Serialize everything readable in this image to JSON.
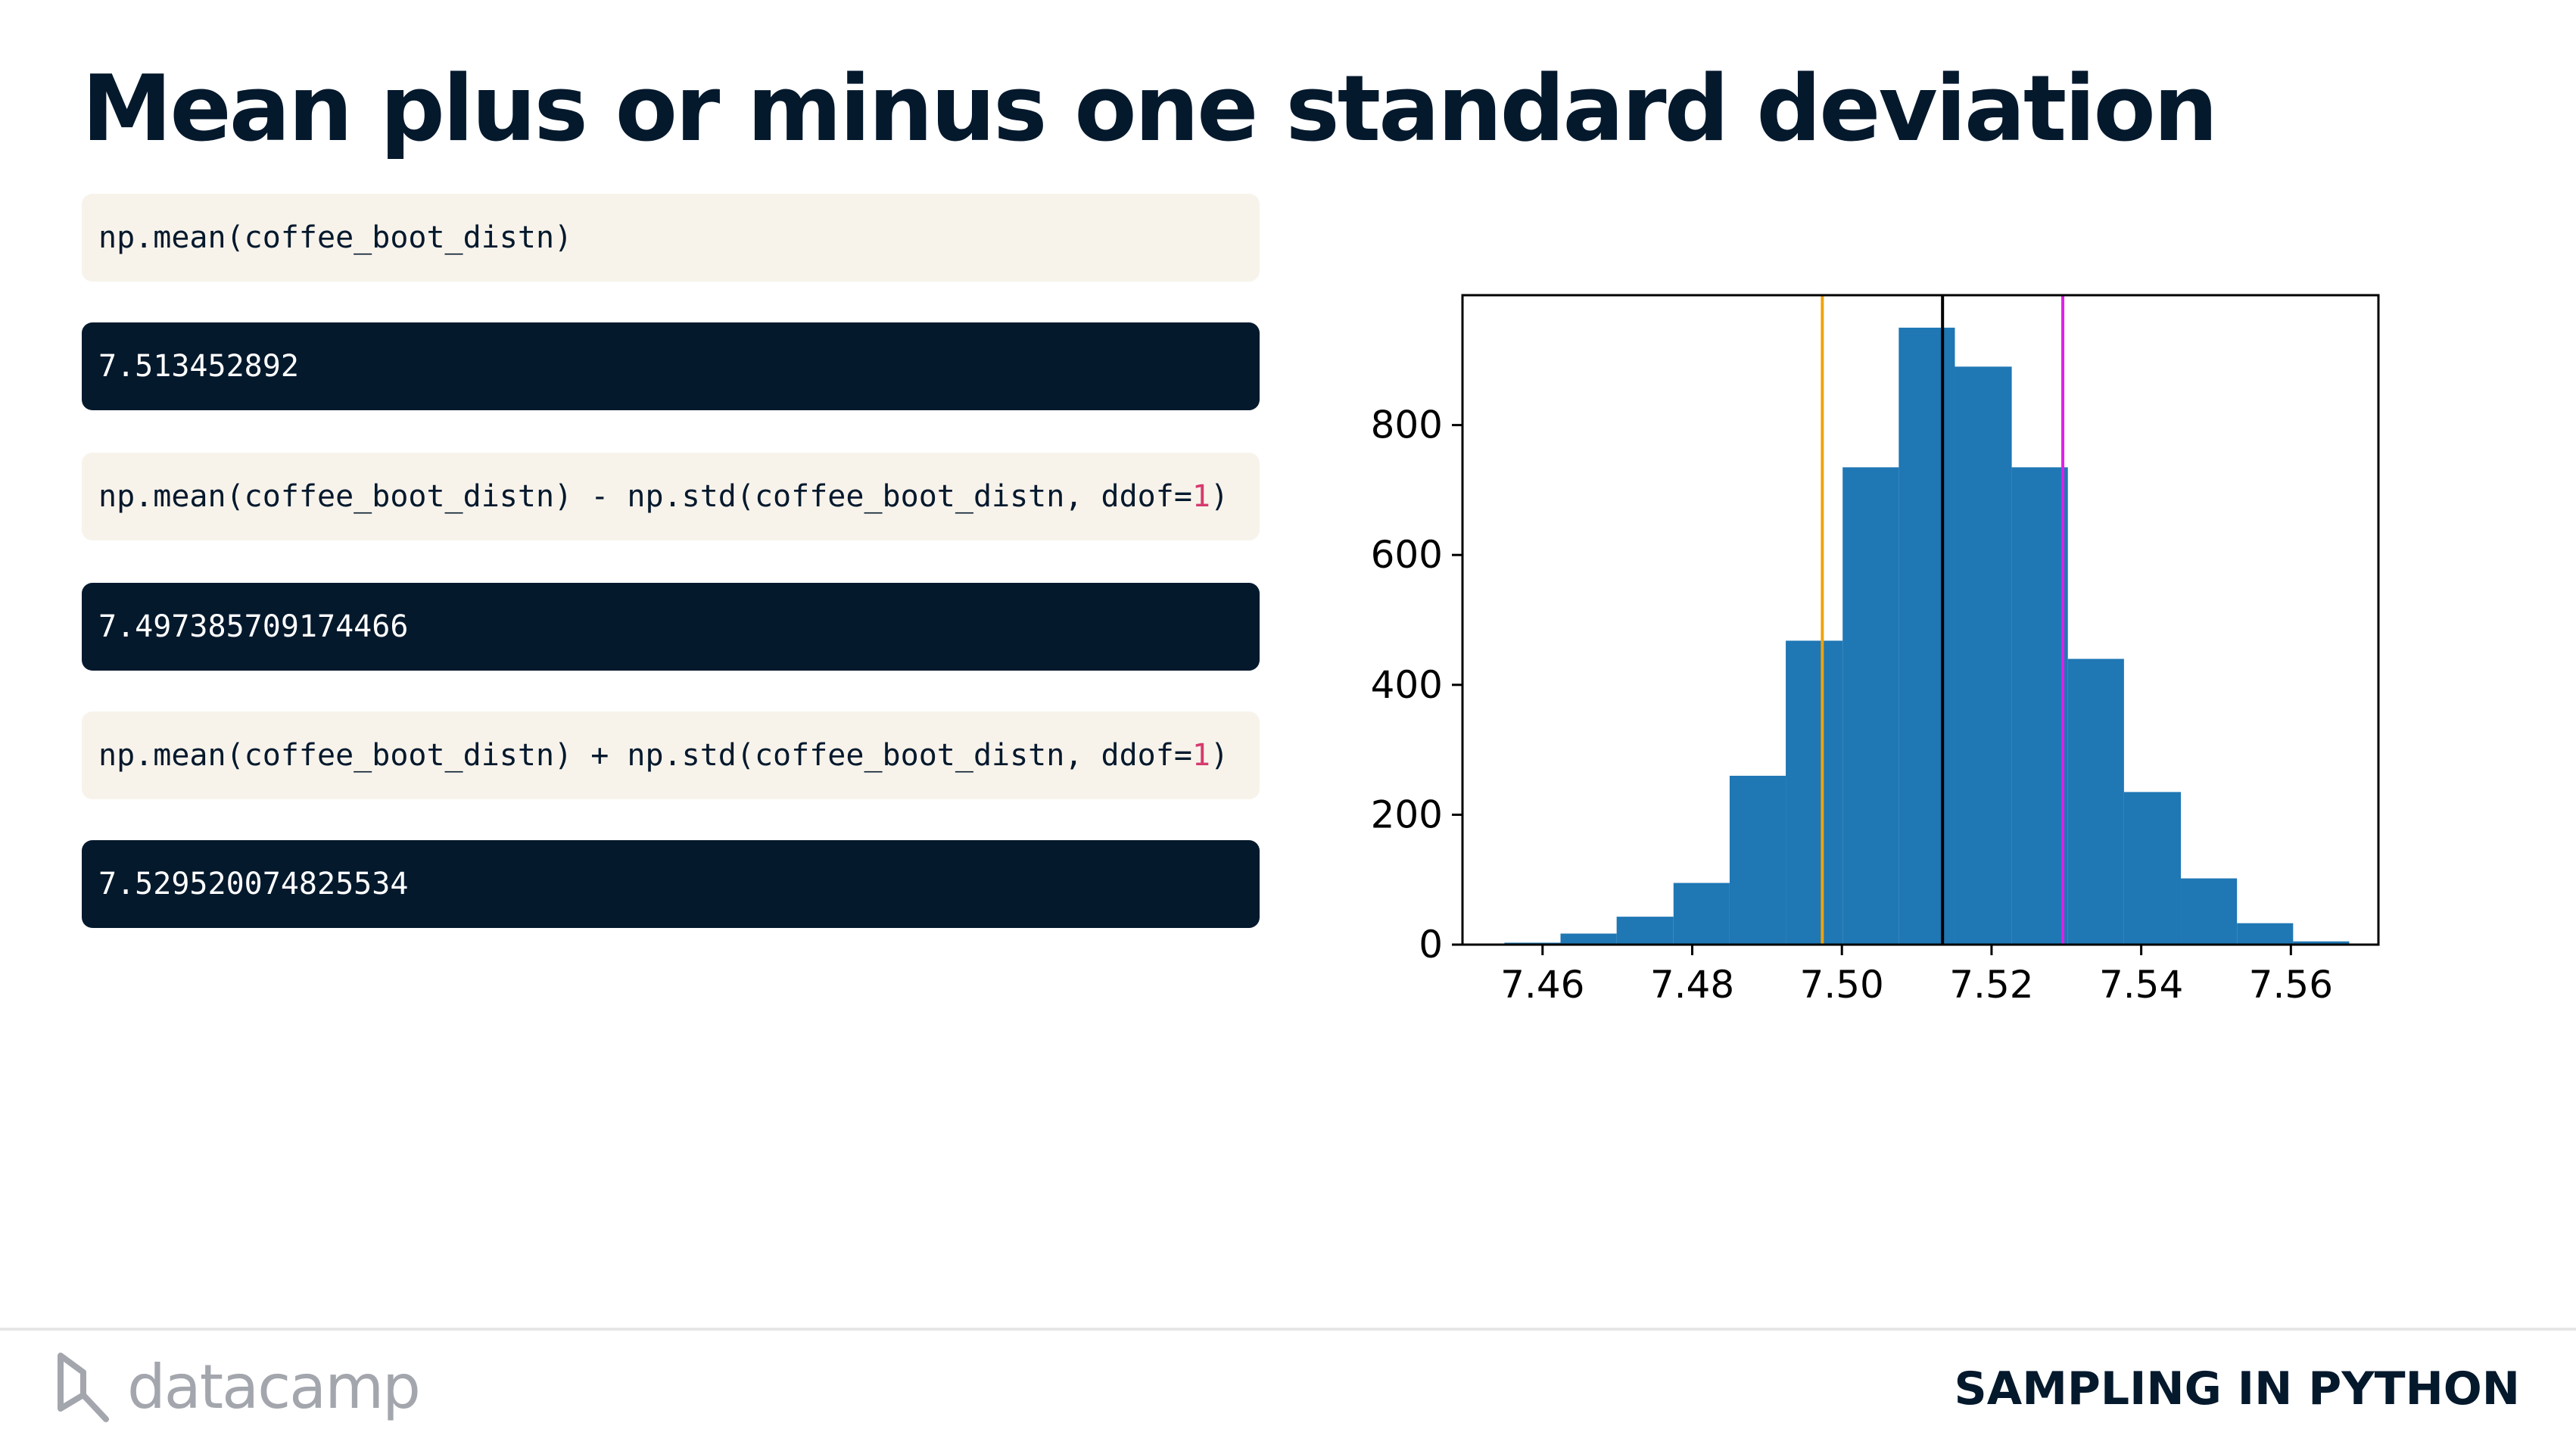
{
  "slide": {
    "title": "Mean plus or minus one standard deviation"
  },
  "code": [
    {
      "input": "np.mean(coffee_boot_distn)",
      "input_parts": [
        "np.mean(coffee_boot_distn)"
      ],
      "output": "7.513452892"
    },
    {
      "input": "np.mean(coffee_boot_distn) - np.std(coffee_boot_distn, ddof=1)",
      "input_parts": [
        "np.mean(coffee_boot_distn) - np.std(coffee_boot_distn, ddof=",
        "1",
        ")"
      ],
      "output": "7.497385709174466"
    },
    {
      "input": "np.mean(coffee_boot_distn) + np.std(coffee_boot_distn, ddof=1)",
      "input_parts": [
        "np.mean(coffee_boot_distn) + np.std(coffee_boot_distn, ddof=",
        "1",
        ")"
      ],
      "output": "7.529520074825534"
    }
  ],
  "colors": {
    "bar": "#1f77b4",
    "lower_line": "#f0a30a",
    "mean_line": "#000000",
    "upper_line": "#e020e8",
    "code_literal": "#d63a6e"
  },
  "chart_data": {
    "type": "bar",
    "title": "",
    "xlabel": "",
    "ylabel": "",
    "grid": false,
    "xlim": [
      7.4493,
      7.5717
    ],
    "ylim": [
      0,
      1000
    ],
    "xticks": [
      "7.46",
      "7.48",
      "7.50",
      "7.52",
      "7.54",
      "7.56"
    ],
    "xtick_values": [
      7.46,
      7.48,
      7.5,
      7.52,
      7.54,
      7.56
    ],
    "yticks": [
      "0",
      "200",
      "400",
      "600",
      "800"
    ],
    "ytick_values": [
      0,
      200,
      400,
      600,
      800
    ],
    "bins": [
      {
        "x0": 7.4549,
        "x1": 7.4624,
        "count": 3
      },
      {
        "x0": 7.4624,
        "x1": 7.4699,
        "count": 17
      },
      {
        "x0": 7.4699,
        "x1": 7.4775,
        "count": 43
      },
      {
        "x0": 7.4775,
        "x1": 7.485,
        "count": 95
      },
      {
        "x0": 7.485,
        "x1": 7.4925,
        "count": 260
      },
      {
        "x0": 7.4925,
        "x1": 7.5001,
        "count": 468
      },
      {
        "x0": 7.5001,
        "x1": 7.5076,
        "count": 735
      },
      {
        "x0": 7.5076,
        "x1": 7.5151,
        "count": 950
      },
      {
        "x0": 7.5151,
        "x1": 7.5227,
        "count": 890
      },
      {
        "x0": 7.5227,
        "x1": 7.5302,
        "count": 735
      },
      {
        "x0": 7.5302,
        "x1": 7.5377,
        "count": 440
      },
      {
        "x0": 7.5377,
        "x1": 7.5453,
        "count": 235
      },
      {
        "x0": 7.5453,
        "x1": 7.5528,
        "count": 102
      },
      {
        "x0": 7.5528,
        "x1": 7.5603,
        "count": 33
      },
      {
        "x0": 7.5603,
        "x1": 7.5678,
        "count": 5
      }
    ],
    "vlines": [
      {
        "x": 7.497385709174466,
        "color": "#f0a30a"
      },
      {
        "x": 7.513452892,
        "color": "#000000"
      },
      {
        "x": 7.529520074825534,
        "color": "#e020e8"
      }
    ]
  },
  "footer": {
    "logo_icon": "datacamp-logo-icon",
    "logo_text": "datacamp",
    "course": "SAMPLING IN PYTHON"
  }
}
